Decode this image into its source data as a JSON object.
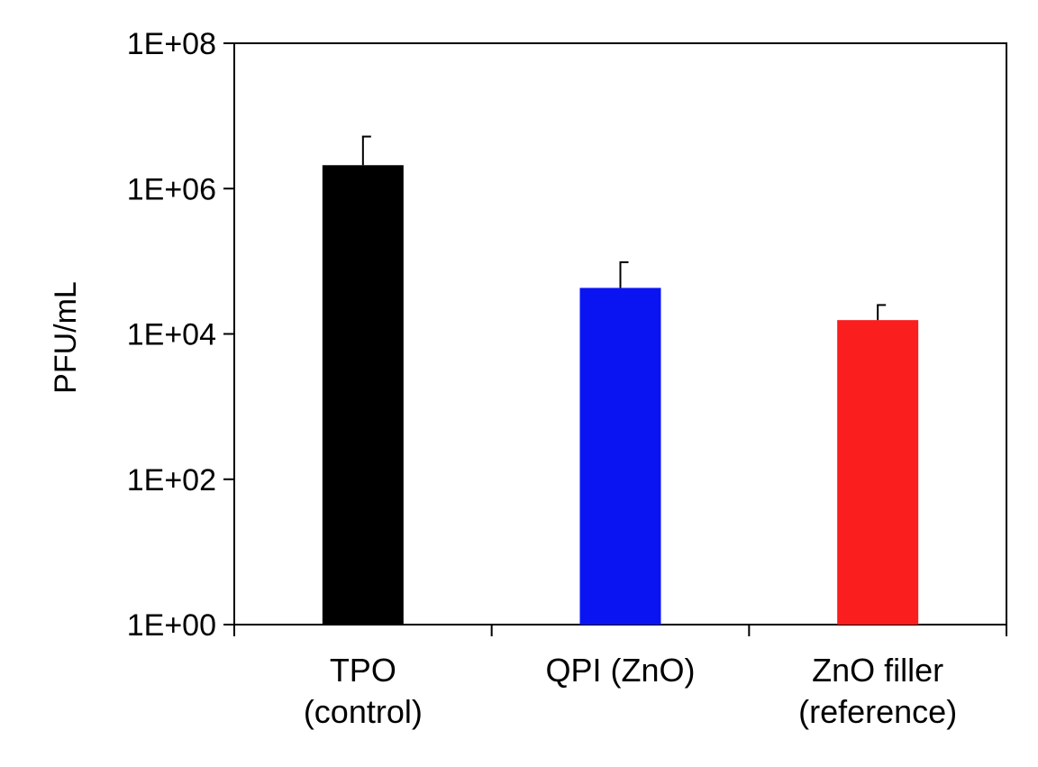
{
  "chart_data": {
    "type": "bar",
    "title": "",
    "xlabel": "",
    "ylabel": "PFU/mL",
    "yscale": "log",
    "ylim": [
      1,
      100000000
    ],
    "yticks": [
      {
        "value": 1,
        "label": "1E+00"
      },
      {
        "value": 100,
        "label": "1E+02"
      },
      {
        "value": 10000,
        "label": "1E+04"
      },
      {
        "value": 1000000,
        "label": "1E+06"
      },
      {
        "value": 100000000,
        "label": "1E+08"
      }
    ],
    "categories": [
      [
        "TPO",
        "(control)"
      ],
      [
        "QPI (ZnO)"
      ],
      [
        "ZnO filler",
        "(reference)"
      ]
    ],
    "values": [
      2100000,
      43000,
      15500
    ],
    "error_upper": [
      5200000,
      97000,
      25000
    ],
    "colors": [
      "#000000",
      "#0a14f2",
      "#fa1e1e"
    ],
    "grid": false,
    "legend": "none"
  }
}
